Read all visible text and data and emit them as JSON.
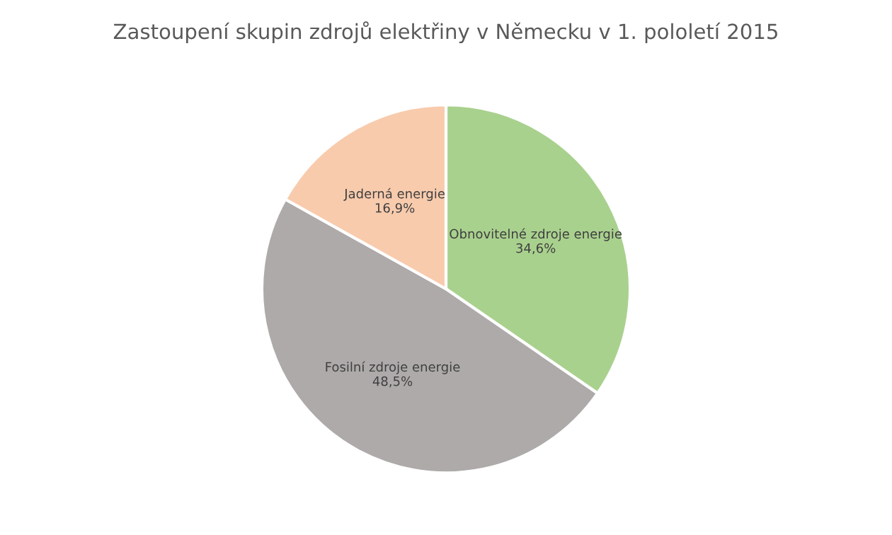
{
  "chart_data": {
    "type": "pie",
    "title": "Zastoupení skupin zdrojů elektřiny v Německu v 1. pololetí 2015",
    "categories": [
      "Obnovitelné zdroje energie",
      "Fosilní zdroje energie",
      "Jaderná energie"
    ],
    "values": [
      34.6,
      48.5,
      16.9
    ],
    "value_labels": [
      "34,6%",
      "48,5%",
      "16,9%"
    ],
    "colors": [
      "#a9d18e",
      "#aeaaaa",
      "#f8cbad"
    ]
  }
}
